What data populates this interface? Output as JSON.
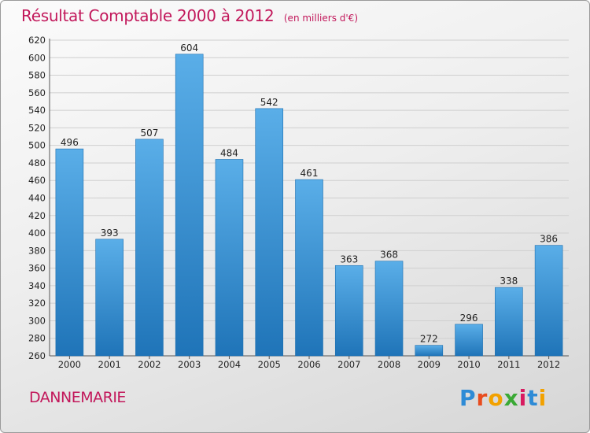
{
  "header": {
    "title": "Résultat Comptable 2000 à 2012",
    "subtitle": "(en milliers d'€)"
  },
  "footer": {
    "place": "DANNEMARIE",
    "brand_letters": [
      "P",
      "r",
      "o",
      "x",
      "i",
      "t",
      "i"
    ],
    "brand_colors": [
      "#2e8bd6",
      "#e84c1e",
      "#f2a100",
      "#3aa935",
      "#d81b60",
      "#2e8bd6",
      "#f2a100"
    ]
  },
  "colors": {
    "bar_light": "#5aaee8",
    "bar_dark": "#1f74b8",
    "text": "#222222",
    "title": "#c2185b"
  },
  "chart_data": {
    "type": "bar",
    "categories": [
      "2000",
      "2001",
      "2002",
      "2003",
      "2004",
      "2005",
      "2006",
      "2007",
      "2008",
      "2009",
      "2010",
      "2011",
      "2012"
    ],
    "values": [
      496,
      393,
      507,
      604,
      484,
      542,
      461,
      363,
      368,
      272,
      296,
      338,
      386
    ],
    "yticks": [
      260,
      280,
      300,
      320,
      340,
      360,
      380,
      400,
      420,
      440,
      460,
      480,
      500,
      520,
      540,
      560,
      580,
      600,
      620
    ],
    "ylim": [
      260,
      620
    ],
    "grid": true,
    "legend": "none",
    "data_labels": true
  }
}
